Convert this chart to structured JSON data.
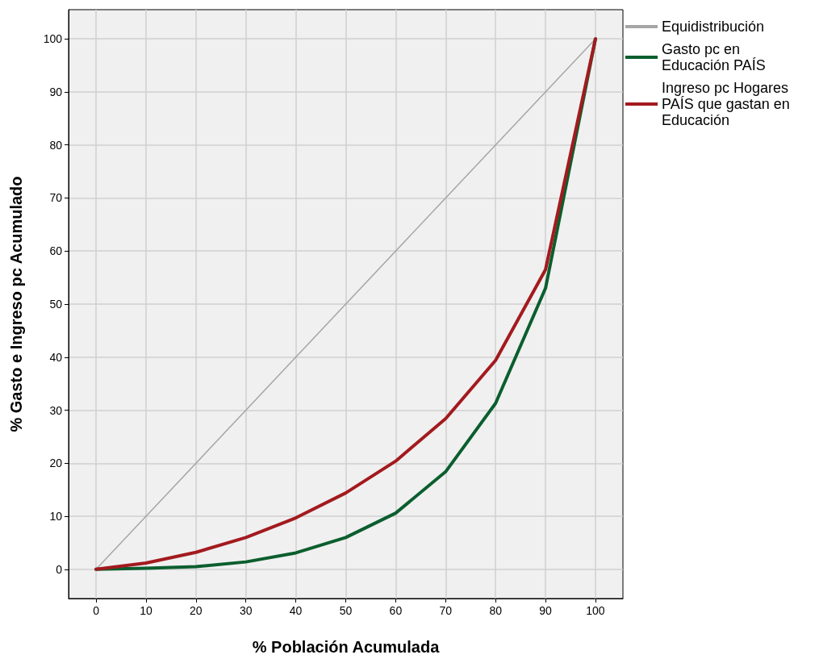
{
  "chart_data": {
    "type": "line",
    "xlabel": "% Población Acumulada",
    "ylabel": "% Gasto e Ingreso pc Acumulado",
    "x": [
      0,
      10,
      20,
      30,
      40,
      50,
      60,
      70,
      80,
      90,
      100
    ],
    "series": [
      {
        "name": "Equidistribución",
        "color": "#a6a6a6",
        "x": [
          0,
          100
        ],
        "values": [
          0,
          100
        ]
      },
      {
        "name": "Gasto pc en Educación PAÍS",
        "color": "#0b5e2e",
        "values": [
          0,
          0.2,
          0.5,
          1.4,
          3.1,
          6,
          10.6,
          18.4,
          31.3,
          53,
          100
        ]
      },
      {
        "name": "Ingreso pc Hogares PAÍS que gastan en Educación",
        "color": "#a31a1e",
        "values": [
          0,
          1.2,
          3.2,
          6,
          9.7,
          14.4,
          20.4,
          28.4,
          39.4,
          56.5,
          100
        ]
      }
    ],
    "xlim": [
      -5.5,
      105.5
    ],
    "ylim": [
      -5.5,
      105.5
    ],
    "xticks": [
      0,
      10,
      20,
      30,
      40,
      50,
      60,
      70,
      80,
      90,
      100
    ],
    "yticks": [
      0,
      10,
      20,
      30,
      40,
      50,
      60,
      70,
      80,
      90,
      100
    ],
    "grid": true,
    "legend": "top right",
    "marker": "none",
    "line_style": "solid"
  }
}
